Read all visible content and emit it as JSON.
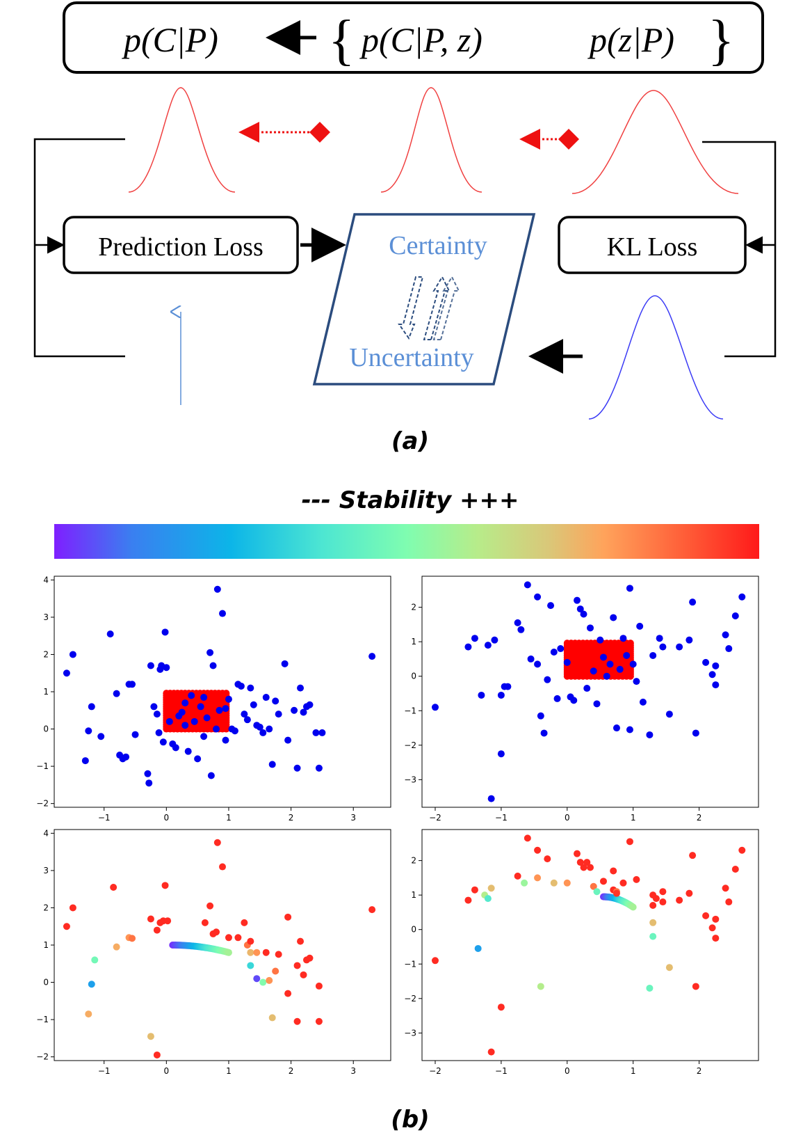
{
  "diagram": {
    "formula": {
      "left": "p(C|P)",
      "middle": "p(C|P, z)",
      "right": "p(z|P)"
    },
    "boxes": {
      "prediction_loss": "Prediction Loss",
      "kl_loss": "KL Loss",
      "certainty": "Certainty",
      "uncertainty": "Uncertainty"
    },
    "caption_a": "(a)",
    "caption_b": "(b)",
    "stability_label": "--- Stability  +++",
    "colors": {
      "accent_blue": "#5b8fd6",
      "dark_blue": "#2b4c7e",
      "curve_red": "#f04040",
      "curve_blue": "#3b3bf5",
      "arrow_red": "#ee1111"
    }
  },
  "colorbar": {
    "stops": [
      "#7f1fff",
      "#3a7ff0",
      "#0cb5e8",
      "#4de6d2",
      "#7ffdb0",
      "#b7ec8a",
      "#d9c879",
      "#ffa35b",
      "#ff5a36",
      "#ff1a1a"
    ]
  },
  "chart_data": [
    {
      "type": "scatter",
      "panel": "top-left",
      "xlim": [
        -1.8,
        3.6
      ],
      "ylim": [
        -2.1,
        4.1
      ],
      "xticks": [
        -1,
        0,
        1,
        2,
        3
      ],
      "yticks": [
        -2,
        -1,
        0,
        1,
        2,
        3,
        4
      ],
      "dense_region": {
        "x": [
          0,
          1
        ],
        "y": [
          0,
          1
        ],
        "color": "#ff0000"
      },
      "point_color": "#0000ee",
      "points": [
        [
          -1.6,
          1.5
        ],
        [
          -1.5,
          2.0
        ],
        [
          -1.3,
          -0.85
        ],
        [
          -1.2,
          0.6
        ],
        [
          -1.25,
          -0.05
        ],
        [
          -1.05,
          -0.2
        ],
        [
          -0.9,
          2.55
        ],
        [
          -0.8,
          0.95
        ],
        [
          -0.75,
          -0.7
        ],
        [
          -0.7,
          -0.8
        ],
        [
          -0.65,
          -0.75
        ],
        [
          -0.6,
          1.2
        ],
        [
          -0.55,
          1.2
        ],
        [
          -0.5,
          -0.15
        ],
        [
          -0.3,
          -1.2
        ],
        [
          -0.28,
          -1.45
        ],
        [
          -0.25,
          1.7
        ],
        [
          -0.2,
          0.6
        ],
        [
          -0.15,
          0.4
        ],
        [
          -0.12,
          -0.1
        ],
        [
          -0.1,
          1.6
        ],
        [
          -0.08,
          1.7
        ],
        [
          -0.05,
          -0.35
        ],
        [
          -0.02,
          2.6
        ],
        [
          0,
          1.65
        ],
        [
          0.05,
          0.2
        ],
        [
          0.1,
          -0.4
        ],
        [
          0.15,
          -0.5
        ],
        [
          0.2,
          0.35
        ],
        [
          0.25,
          0.45
        ],
        [
          0.3,
          0.1
        ],
        [
          0.35,
          -0.6
        ],
        [
          0.4,
          0.9
        ],
        [
          0.45,
          0.2
        ],
        [
          0.5,
          -0.8
        ],
        [
          0.55,
          0.6
        ],
        [
          0.6,
          -0.2
        ],
        [
          0.65,
          0.3
        ],
        [
          0.7,
          2.05
        ],
        [
          0.72,
          -1.25
        ],
        [
          0.75,
          1.7
        ],
        [
          0.8,
          0.0
        ],
        [
          0.82,
          3.75
        ],
        [
          0.85,
          0.5
        ],
        [
          0.9,
          3.1
        ],
        [
          0.95,
          -0.3
        ],
        [
          1.0,
          0.8
        ],
        [
          1.05,
          0.0
        ],
        [
          1.1,
          -0.05
        ],
        [
          1.15,
          1.2
        ],
        [
          1.2,
          1.15
        ],
        [
          1.25,
          0.4
        ],
        [
          1.3,
          0.25
        ],
        [
          1.35,
          1.1
        ],
        [
          1.4,
          0.65
        ],
        [
          1.45,
          0.1
        ],
        [
          1.5,
          0.05
        ],
        [
          1.55,
          -0.1
        ],
        [
          1.6,
          0.85
        ],
        [
          1.65,
          0.0
        ],
        [
          1.7,
          -0.95
        ],
        [
          1.75,
          0.75
        ],
        [
          1.8,
          0.4
        ],
        [
          1.9,
          1.75
        ],
        [
          1.95,
          -0.3
        ],
        [
          2.05,
          0.5
        ],
        [
          2.1,
          -1.05
        ],
        [
          2.15,
          1.1
        ],
        [
          2.2,
          0.45
        ],
        [
          2.25,
          0.6
        ],
        [
          2.3,
          0.65
        ],
        [
          2.4,
          -0.1
        ],
        [
          2.45,
          -1.05
        ],
        [
          2.5,
          -0.1
        ],
        [
          3.3,
          1.95
        ],
        [
          0.6,
          0.85
        ],
        [
          0.3,
          0.7
        ],
        [
          0.95,
          0.55
        ]
      ]
    },
    {
      "type": "scatter",
      "panel": "top-right",
      "xlim": [
        -2.2,
        2.9
      ],
      "ylim": [
        -3.8,
        2.9
      ],
      "xticks": [
        -2,
        -1,
        0,
        1,
        2
      ],
      "yticks": [
        -3,
        -2,
        -1,
        0,
        1,
        2
      ],
      "dense_region": {
        "x": [
          0,
          1
        ],
        "y": [
          0,
          1
        ],
        "color": "#ff0000"
      },
      "point_color": "#0000ee",
      "points": [
        [
          -2.0,
          -0.9
        ],
        [
          -1.5,
          0.85
        ],
        [
          -1.4,
          1.1
        ],
        [
          -1.3,
          -0.55
        ],
        [
          -1.2,
          0.9
        ],
        [
          -1.15,
          -3.55
        ],
        [
          -1.1,
          1.05
        ],
        [
          -1.0,
          -0.55
        ],
        [
          -1.0,
          -2.25
        ],
        [
          -0.95,
          -0.3
        ],
        [
          -0.9,
          -0.3
        ],
        [
          -0.75,
          1.55
        ],
        [
          -0.7,
          1.35
        ],
        [
          -0.6,
          2.65
        ],
        [
          -0.55,
          0.5
        ],
        [
          -0.45,
          2.3
        ],
        [
          -0.45,
          0.35
        ],
        [
          -0.4,
          -1.15
        ],
        [
          -0.35,
          -1.65
        ],
        [
          -0.3,
          -0.1
        ],
        [
          -0.25,
          2.05
        ],
        [
          -0.2,
          0.7
        ],
        [
          -0.15,
          -0.65
        ],
        [
          -0.1,
          0.8
        ],
        [
          0.0,
          0.4
        ],
        [
          0.05,
          -0.6
        ],
        [
          0.1,
          -0.7
        ],
        [
          0.15,
          2.2
        ],
        [
          0.2,
          1.95
        ],
        [
          0.25,
          1.8
        ],
        [
          0.3,
          -0.35
        ],
        [
          0.35,
          1.4
        ],
        [
          0.4,
          0.15
        ],
        [
          0.45,
          -0.8
        ],
        [
          0.5,
          1.05
        ],
        [
          0.55,
          0.55
        ],
        [
          0.6,
          0.0
        ],
        [
          0.65,
          0.35
        ],
        [
          0.7,
          1.7
        ],
        [
          0.75,
          -1.5
        ],
        [
          0.8,
          0.2
        ],
        [
          0.85,
          1.1
        ],
        [
          0.9,
          0.6
        ],
        [
          0.95,
          -1.55
        ],
        [
          0.95,
          2.55
        ],
        [
          1.0,
          0.35
        ],
        [
          1.05,
          -0.15
        ],
        [
          1.1,
          1.45
        ],
        [
          1.15,
          -0.75
        ],
        [
          1.25,
          -1.7
        ],
        [
          1.3,
          0.6
        ],
        [
          1.4,
          1.1
        ],
        [
          1.45,
          0.85
        ],
        [
          1.55,
          -1.1
        ],
        [
          1.7,
          0.85
        ],
        [
          1.85,
          1.05
        ],
        [
          1.9,
          2.15
        ],
        [
          1.95,
          -1.65
        ],
        [
          2.1,
          0.4
        ],
        [
          2.2,
          0.05
        ],
        [
          2.25,
          0.3
        ],
        [
          2.25,
          -0.25
        ],
        [
          2.4,
          1.2
        ],
        [
          2.45,
          0.8
        ],
        [
          2.55,
          1.75
        ],
        [
          2.65,
          2.3
        ]
      ]
    },
    {
      "type": "scatter",
      "panel": "bottom-left",
      "xlim": [
        -1.8,
        3.6
      ],
      "ylim": [
        -2.1,
        4.1
      ],
      "xticks": [
        -1,
        0,
        1,
        2,
        3
      ],
      "yticks": [
        -2,
        -1,
        0,
        1,
        2,
        3,
        4
      ],
      "colored_by": "stability",
      "points": [
        [
          -1.6,
          1.5,
          0.97
        ],
        [
          -1.5,
          2.0,
          0.97
        ],
        [
          -1.25,
          -0.85,
          0.75
        ],
        [
          -1.15,
          0.6,
          0.42
        ],
        [
          -1.2,
          -0.05,
          0.18
        ],
        [
          -0.85,
          2.55,
          0.97
        ],
        [
          -0.8,
          0.95,
          0.75
        ],
        [
          -0.6,
          1.2,
          0.8
        ],
        [
          -0.55,
          1.18,
          0.85
        ],
        [
          -0.25,
          -1.45,
          0.7
        ],
        [
          -0.25,
          1.7,
          0.97
        ],
        [
          -0.15,
          1.4,
          0.97
        ],
        [
          -0.1,
          1.6,
          0.97
        ],
        [
          -0.05,
          1.65,
          0.97
        ],
        [
          -0.02,
          2.6,
          0.97
        ],
        [
          0.02,
          1.65,
          0.97
        ],
        [
          -0.15,
          -1.95,
          0.97
        ],
        [
          0.7,
          2.05,
          0.97
        ],
        [
          0.75,
          1.3,
          0.97
        ],
        [
          0.82,
          3.75,
          0.97
        ],
        [
          0.9,
          3.1,
          0.97
        ],
        [
          0.62,
          1.6,
          0.97
        ],
        [
          0.8,
          1.35,
          0.97
        ],
        [
          1.0,
          1.2,
          0.97
        ],
        [
          1.15,
          1.2,
          0.97
        ],
        [
          1.25,
          1.6,
          0.97
        ],
        [
          1.3,
          1.0,
          0.85
        ],
        [
          1.35,
          1.1,
          0.97
        ],
        [
          1.35,
          0.8,
          0.72
        ],
        [
          1.35,
          0.45,
          0.3
        ],
        [
          1.45,
          0.8,
          0.8
        ],
        [
          1.45,
          0.1,
          0.05
        ],
        [
          1.55,
          0.0,
          0.45
        ],
        [
          1.6,
          0.8,
          0.97
        ],
        [
          1.65,
          0.05,
          0.8
        ],
        [
          1.7,
          -0.95,
          0.7
        ],
        [
          1.75,
          0.3,
          0.85
        ],
        [
          1.8,
          0.75,
          0.97
        ],
        [
          1.95,
          1.75,
          0.97
        ],
        [
          1.95,
          -0.3,
          0.97
        ],
        [
          2.1,
          -1.05,
          0.97
        ],
        [
          2.1,
          0.45,
          0.97
        ],
        [
          2.15,
          1.1,
          0.97
        ],
        [
          2.2,
          0.2,
          0.97
        ],
        [
          2.25,
          0.6,
          0.97
        ],
        [
          2.3,
          0.65,
          0.97
        ],
        [
          2.45,
          -0.1,
          0.97
        ],
        [
          2.45,
          -1.05,
          0.97
        ],
        [
          3.3,
          1.95,
          0.97
        ]
      ],
      "arc": {
        "x_from": 0.1,
        "x_to": 1.0,
        "y_from": 1.0,
        "y_to": 0.8
      }
    },
    {
      "type": "scatter",
      "panel": "bottom-right",
      "xlim": [
        -2.2,
        2.9
      ],
      "ylim": [
        -3.8,
        2.9
      ],
      "xticks": [
        -2,
        -1,
        0,
        1,
        2
      ],
      "yticks": [
        -3,
        -2,
        -1,
        0,
        1,
        2
      ],
      "colored_by": "stability",
      "points": [
        [
          -2.0,
          -0.9,
          0.97
        ],
        [
          -1.5,
          0.85,
          0.97
        ],
        [
          -1.4,
          1.15,
          0.97
        ],
        [
          -1.25,
          1.0,
          0.55
        ],
        [
          -1.2,
          0.9,
          0.35
        ],
        [
          -1.15,
          1.2,
          0.7
        ],
        [
          -1.35,
          -0.55,
          0.18
        ],
        [
          -1.15,
          -3.55,
          0.97
        ],
        [
          -1.0,
          -2.25,
          0.97
        ],
        [
          -0.75,
          1.55,
          0.97
        ],
        [
          -0.65,
          1.35,
          0.5
        ],
        [
          -0.6,
          2.65,
          0.97
        ],
        [
          -0.45,
          1.5,
          0.8
        ],
        [
          -0.45,
          2.3,
          0.97
        ],
        [
          -0.4,
          -1.65,
          0.55
        ],
        [
          -0.3,
          2.05,
          0.97
        ],
        [
          -0.2,
          1.35,
          0.7
        ],
        [
          0.0,
          1.35,
          0.8
        ],
        [
          0.15,
          2.2,
          0.97
        ],
        [
          0.2,
          1.95,
          0.97
        ],
        [
          0.25,
          1.8,
          0.97
        ],
        [
          0.3,
          1.95,
          0.97
        ],
        [
          0.35,
          1.8,
          0.97
        ],
        [
          0.4,
          1.25,
          0.85
        ],
        [
          0.45,
          1.1,
          0.4
        ],
        [
          0.55,
          1.4,
          0.97
        ],
        [
          0.7,
          1.15,
          0.97
        ],
        [
          0.7,
          1.7,
          0.97
        ],
        [
          0.75,
          1.1,
          0.85
        ],
        [
          0.75,
          1.05,
          0.95
        ],
        [
          0.85,
          1.35,
          0.97
        ],
        [
          0.95,
          2.55,
          0.97
        ],
        [
          1.05,
          1.45,
          0.97
        ],
        [
          1.3,
          1.0,
          0.97
        ],
        [
          1.3,
          0.7,
          0.97
        ],
        [
          1.3,
          0.2,
          0.7
        ],
        [
          1.3,
          -0.2,
          0.4
        ],
        [
          1.35,
          0.9,
          0.97
        ],
        [
          1.45,
          1.1,
          0.97
        ],
        [
          1.45,
          0.8,
          0.97
        ],
        [
          1.25,
          -1.7,
          0.4
        ],
        [
          1.55,
          -1.1,
          0.7
        ],
        [
          1.7,
          0.85,
          0.97
        ],
        [
          1.85,
          1.05,
          0.97
        ],
        [
          1.9,
          2.15,
          0.97
        ],
        [
          1.95,
          -1.65,
          0.97
        ],
        [
          2.1,
          0.4,
          0.97
        ],
        [
          2.2,
          0.05,
          0.97
        ],
        [
          2.25,
          0.3,
          0.97
        ],
        [
          2.25,
          -0.25,
          0.97
        ],
        [
          2.4,
          1.2,
          0.97
        ],
        [
          2.45,
          0.8,
          0.97
        ],
        [
          2.55,
          1.75,
          0.97
        ],
        [
          2.65,
          2.3,
          0.97
        ]
      ],
      "arc": {
        "x_from": 0.55,
        "x_to": 1.0,
        "y_from": 0.95,
        "y_to": 0.65
      }
    }
  ]
}
